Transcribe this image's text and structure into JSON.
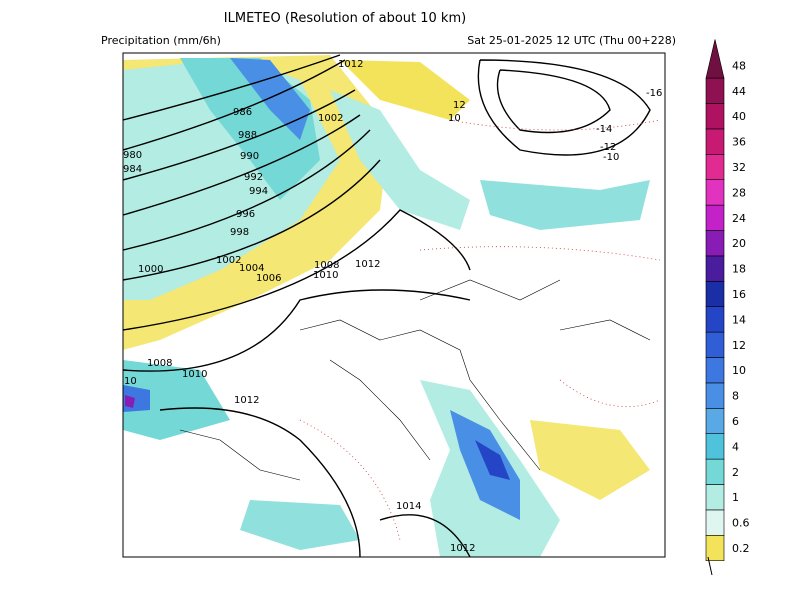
{
  "header": {
    "title": "ILMETEO (Resolution of about 10 km)",
    "variable": "Precipitation (mm/6h)",
    "datetime": "Sat 25-01-2025 12 UTC (Thu 00+228)"
  },
  "legend": {
    "levels": [
      {
        "label": "0.2",
        "color": "#f3e35a"
      },
      {
        "label": "0.6",
        "color": "#dff5ef"
      },
      {
        "label": "1",
        "color": "#b2ece3"
      },
      {
        "label": "2",
        "color": "#74d8d6"
      },
      {
        "label": "4",
        "color": "#4fc3dc"
      },
      {
        "label": "6",
        "color": "#58a9e6"
      },
      {
        "label": "8",
        "color": "#4a8fe6"
      },
      {
        "label": "10",
        "color": "#3d78e0"
      },
      {
        "label": "12",
        "color": "#305ed6"
      },
      {
        "label": "14",
        "color": "#2446c6"
      },
      {
        "label": "16",
        "color": "#1a2ea6"
      },
      {
        "label": "18",
        "color": "#4a1c9e"
      },
      {
        "label": "20",
        "color": "#8a1cb6"
      },
      {
        "label": "24",
        "color": "#c322c8"
      },
      {
        "label": "28",
        "color": "#e232c0"
      },
      {
        "label": "32",
        "color": "#e12a92"
      },
      {
        "label": "36",
        "color": "#c81a72"
      },
      {
        "label": "40",
        "color": "#b01262"
      },
      {
        "label": "44",
        "color": "#901152"
      },
      {
        "label": "48",
        "color": "#701040"
      }
    ]
  },
  "map": {
    "isobar_labels": [
      "1012",
      "1002",
      "986",
      "988",
      "990",
      "992",
      "994",
      "996",
      "998",
      "1000",
      "1002",
      "1004",
      "1006",
      "1008",
      "1010",
      "1012",
      "1008",
      "1010",
      "1012",
      "1014",
      "1012",
      "-16",
      "-14",
      "-12",
      "-10",
      "12",
      "10",
      "984",
      "980",
      "10"
    ]
  }
}
